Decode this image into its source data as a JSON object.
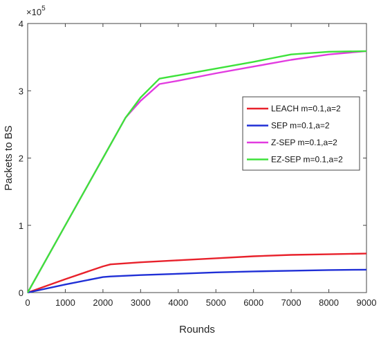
{
  "chart_data": {
    "type": "line",
    "xlabel": "Rounds",
    "ylabel": "Packets to BS",
    "y_exponent_label": "×10^5",
    "y_exponent": {
      "base": "×10",
      "power": "5"
    },
    "xlim": [
      0,
      9000
    ],
    "ylim": [
      0,
      400000
    ],
    "x_ticks": [
      "0",
      "1000",
      "2000",
      "3000",
      "4000",
      "5000",
      "6000",
      "7000",
      "8000",
      "9000"
    ],
    "y_ticks": [
      "0",
      "1",
      "2",
      "3",
      "4"
    ],
    "grid": false,
    "legend_position": "right",
    "series": [
      {
        "name": "LEACH  m=0.1,a=2",
        "color": "#e8212b",
        "points": [
          [
            0,
            0
          ],
          [
            1000,
            20000
          ],
          [
            2000,
            39000
          ],
          [
            2200,
            42000
          ],
          [
            3000,
            45000
          ],
          [
            4000,
            48000
          ],
          [
            5000,
            51000
          ],
          [
            6000,
            54000
          ],
          [
            7000,
            56000
          ],
          [
            8000,
            57000
          ],
          [
            9000,
            58000
          ]
        ]
      },
      {
        "name": "SEP  m=0.1,a=2",
        "color": "#1f2fd6",
        "points": [
          [
            0,
            0
          ],
          [
            1000,
            12000
          ],
          [
            2000,
            23000
          ],
          [
            2200,
            24000
          ],
          [
            3000,
            26000
          ],
          [
            4000,
            28000
          ],
          [
            5000,
            30000
          ],
          [
            6000,
            31500
          ],
          [
            7000,
            32500
          ],
          [
            8000,
            33500
          ],
          [
            9000,
            34000
          ]
        ]
      },
      {
        "name": "Z-SEP  m=0.1,a=2",
        "color": "#e23be0",
        "points": [
          [
            0,
            0
          ],
          [
            1000,
            100000
          ],
          [
            2000,
            200000
          ],
          [
            2600,
            260000
          ],
          [
            3000,
            285000
          ],
          [
            3500,
            310000
          ],
          [
            4000,
            315000
          ],
          [
            5000,
            326000
          ],
          [
            6000,
            336000
          ],
          [
            7000,
            346000
          ],
          [
            8000,
            354000
          ],
          [
            9000,
            359000
          ]
        ]
      },
      {
        "name": "EZ-SEP  m=0.1,a=2",
        "color": "#3ee23b",
        "points": [
          [
            0,
            0
          ],
          [
            1000,
            100000
          ],
          [
            2000,
            200000
          ],
          [
            2600,
            260000
          ],
          [
            3000,
            290000
          ],
          [
            3500,
            318000
          ],
          [
            4000,
            323000
          ],
          [
            5000,
            333000
          ],
          [
            6000,
            343000
          ],
          [
            7000,
            354000
          ],
          [
            8000,
            358000
          ],
          [
            9000,
            359000
          ]
        ]
      }
    ]
  }
}
